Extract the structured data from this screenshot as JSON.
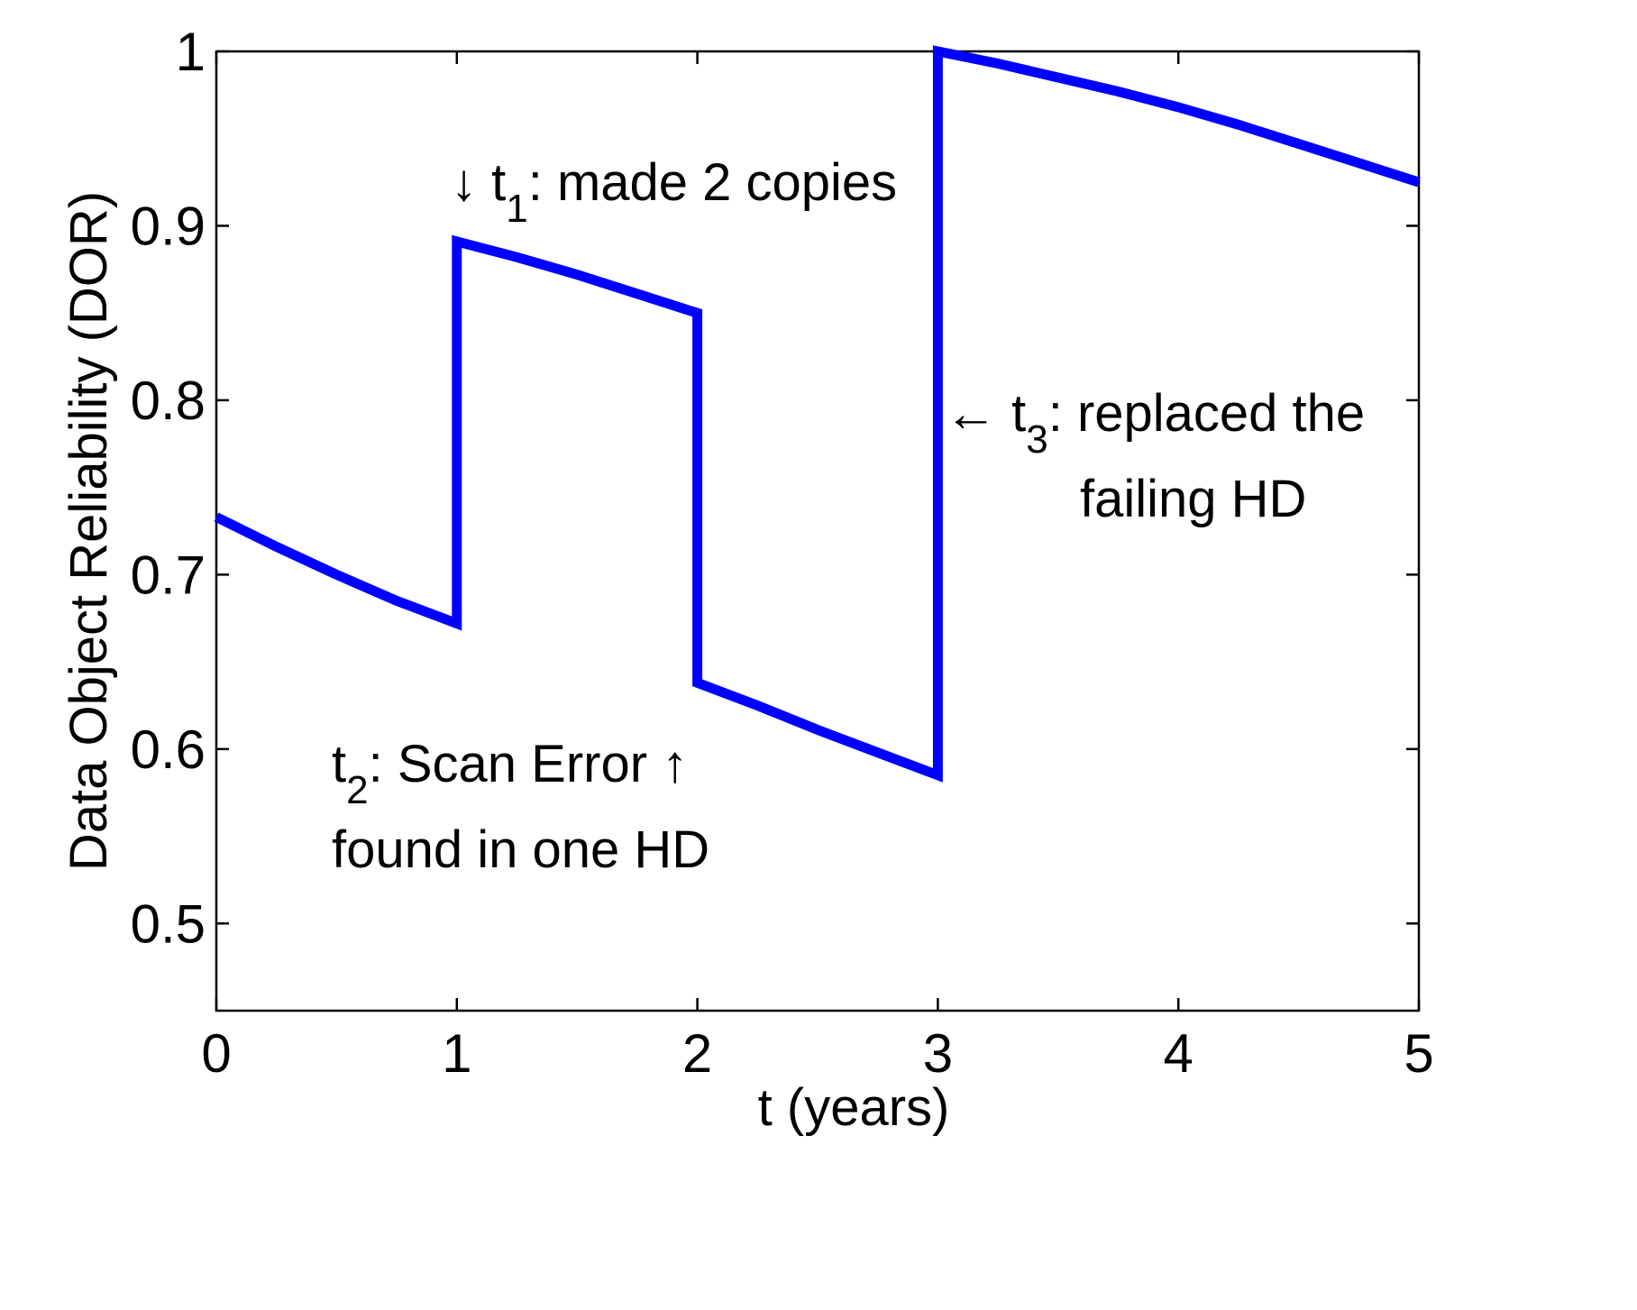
{
  "chart_data": {
    "type": "line",
    "title": "",
    "xlabel": "t (years)",
    "ylabel": "Data Object Reliability (DOR)",
    "xlim": [
      0,
      5
    ],
    "ylim": [
      0.45,
      1.0
    ],
    "xticks": [
      0,
      1,
      2,
      3,
      4,
      5
    ],
    "xtick_labels": [
      "0",
      "1",
      "2",
      "3",
      "4",
      "5"
    ],
    "yticks": [
      0.5,
      0.6,
      0.7,
      0.8,
      0.9,
      1.0
    ],
    "ytick_labels": [
      "0.5",
      "0.6",
      "0.7",
      "0.8",
      "0.9",
      "1"
    ],
    "grid": false,
    "line_color": "#0000ff",
    "series": [
      {
        "x": [
          0,
          0.25,
          0.5,
          0.75,
          1,
          1,
          1.25,
          1.5,
          1.75,
          2,
          2,
          2.25,
          2.5,
          2.75,
          3,
          3,
          3.25,
          3.5,
          3.75,
          4,
          4.25,
          4.5,
          4.75,
          5
        ],
        "y": [
          0.733,
          0.716,
          0.7,
          0.685,
          0.672,
          0.891,
          0.882,
          0.872,
          0.861,
          0.85,
          0.638,
          0.625,
          0.611,
          0.598,
          0.585,
          1.0,
          0.993,
          0.985,
          0.977,
          0.968,
          0.958,
          0.947,
          0.936,
          0.925
        ]
      }
    ],
    "annotations": [
      {
        "main": "↓ t",
        "sub": "1",
        "rest": ": made 2 copies",
        "line2": ""
      },
      {
        "main": "t",
        "sub": "2",
        "rest": ": Scan Error ↑",
        "line2": "found in one HD"
      },
      {
        "main": "← t",
        "sub": "3",
        "rest": ": replaced the",
        "line2": "failing HD"
      }
    ]
  }
}
